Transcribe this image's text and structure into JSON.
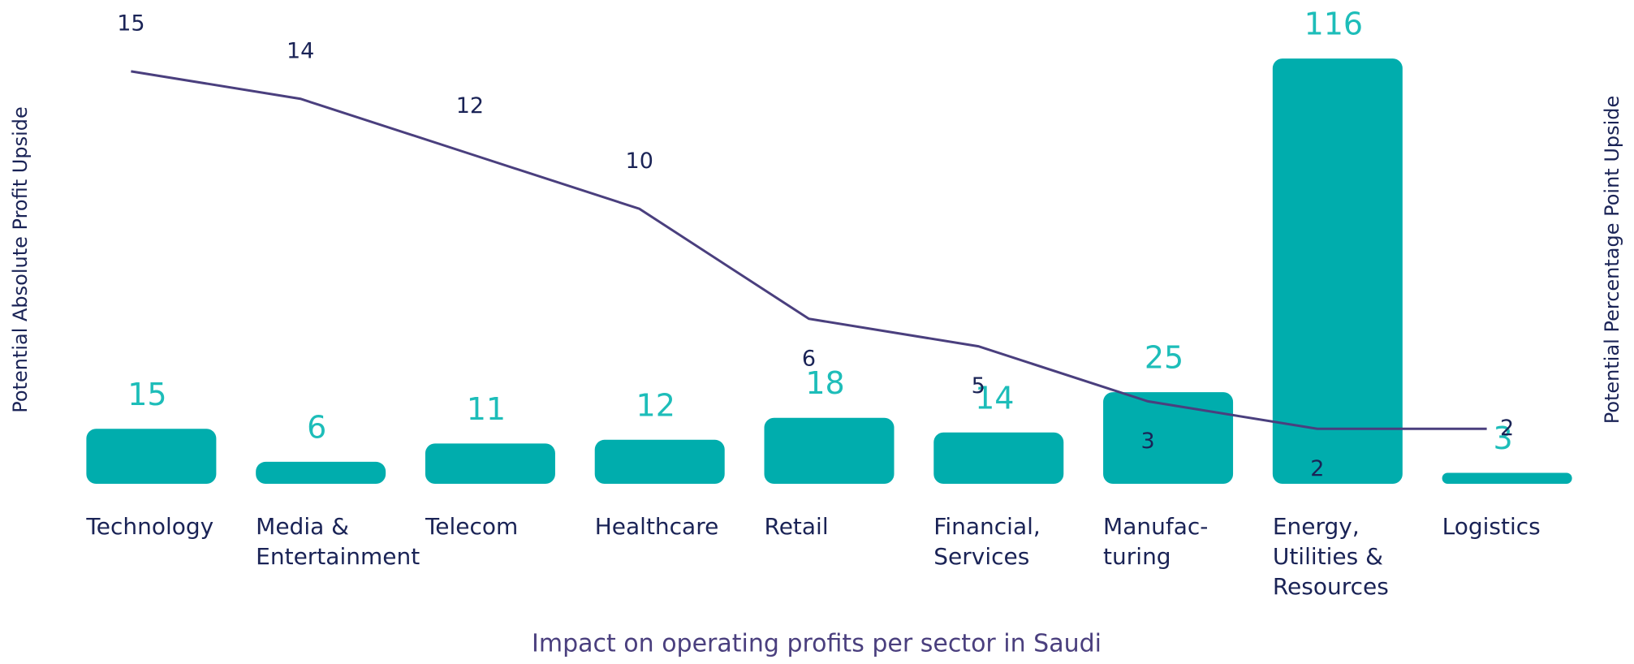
{
  "chart_data": {
    "type": "bar-line",
    "caption": "Impact on operating profits per sector in Saudi",
    "y_label": "Potential Absolute Profit Upside",
    "y2_label": "Potential Percentage Point Upside",
    "categories": [
      "Technology",
      "Media &\nEntertainment",
      "Telecom",
      "Healthcare",
      "Retail",
      "Financial,\nServices",
      "Manufac-\nturing",
      "Energy,\nUtilities &\nResources",
      "Logistics"
    ],
    "ylim": [
      0,
      120
    ],
    "y2lim": [
      0,
      16
    ],
    "series": [
      {
        "name": "Potential Absolute Profit Upside",
        "type": "bar",
        "color": "#00adad",
        "label_color": "#1dbdb9",
        "values": [
          15,
          6,
          11,
          12,
          18,
          14,
          25,
          116,
          3
        ]
      },
      {
        "name": "Potential Percentage Point Upside",
        "type": "line",
        "axis": "y2",
        "color": "#4a3f7e",
        "label_color": "#1a2356",
        "values": [
          15,
          14,
          12,
          10,
          6,
          5,
          3,
          2,
          2
        ]
      }
    ]
  }
}
